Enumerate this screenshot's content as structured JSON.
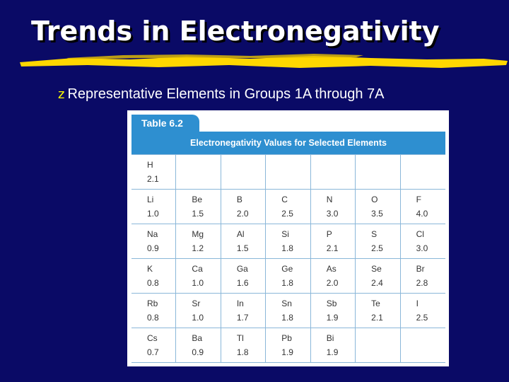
{
  "slide": {
    "title": "Trends in Electronegativity",
    "bullet_mark": "z",
    "bullet": "Representative Elements in Groups 1A through 7A"
  },
  "table": {
    "tab_label": "Table 6.2",
    "header": "Electronegativity Values for Selected Elements",
    "rows": [
      [
        {
          "s": "H",
          "v": "2.1"
        },
        {
          "s": "",
          "v": ""
        },
        {
          "s": "",
          "v": ""
        },
        {
          "s": "",
          "v": ""
        },
        {
          "s": "",
          "v": ""
        },
        {
          "s": "",
          "v": ""
        },
        {
          "s": "",
          "v": ""
        }
      ],
      [
        {
          "s": "Li",
          "v": "1.0"
        },
        {
          "s": "Be",
          "v": "1.5"
        },
        {
          "s": "B",
          "v": "2.0"
        },
        {
          "s": "C",
          "v": "2.5"
        },
        {
          "s": "N",
          "v": "3.0"
        },
        {
          "s": "O",
          "v": "3.5"
        },
        {
          "s": "F",
          "v": "4.0"
        }
      ],
      [
        {
          "s": "Na",
          "v": "0.9"
        },
        {
          "s": "Mg",
          "v": "1.2"
        },
        {
          "s": "Al",
          "v": "1.5"
        },
        {
          "s": "Si",
          "v": "1.8"
        },
        {
          "s": "P",
          "v": "2.1"
        },
        {
          "s": "S",
          "v": "2.5"
        },
        {
          "s": "Cl",
          "v": "3.0"
        }
      ],
      [
        {
          "s": "K",
          "v": "0.8"
        },
        {
          "s": "Ca",
          "v": "1.0"
        },
        {
          "s": "Ga",
          "v": "1.6"
        },
        {
          "s": "Ge",
          "v": "1.8"
        },
        {
          "s": "As",
          "v": "2.0"
        },
        {
          "s": "Se",
          "v": "2.4"
        },
        {
          "s": "Br",
          "v": "2.8"
        }
      ],
      [
        {
          "s": "Rb",
          "v": "0.8"
        },
        {
          "s": "Sr",
          "v": "1.0"
        },
        {
          "s": "In",
          "v": "1.7"
        },
        {
          "s": "Sn",
          "v": "1.8"
        },
        {
          "s": "Sb",
          "v": "1.9"
        },
        {
          "s": "Te",
          "v": "2.1"
        },
        {
          "s": "I",
          "v": "2.5"
        }
      ],
      [
        {
          "s": "Cs",
          "v": "0.7"
        },
        {
          "s": "Ba",
          "v": "0.9"
        },
        {
          "s": "Tl",
          "v": "1.8"
        },
        {
          "s": "Pb",
          "v": "1.9"
        },
        {
          "s": "Bi",
          "v": "1.9"
        },
        {
          "s": "",
          "v": ""
        },
        {
          "s": "",
          "v": ""
        }
      ]
    ]
  },
  "colors": {
    "background": "#0a0a66",
    "title": "#ffffff",
    "rule": "#ffd700",
    "bullet_mark": "#ffff00",
    "table_accent": "#2e8fd0"
  }
}
